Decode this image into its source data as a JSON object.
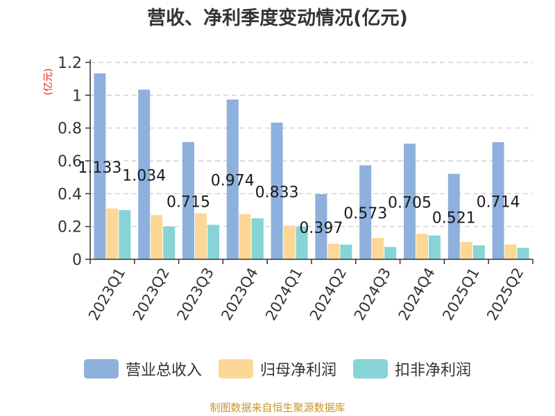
{
  "chart_data": {
    "type": "bar",
    "title": "营收、净利季度变动情况(亿元)",
    "ylabel": "(亿元)",
    "xlabel": "",
    "ylim": [
      0,
      1.2
    ],
    "yticks": [
      "0",
      "0.2",
      "0.4",
      "0.6",
      "0.8",
      "1",
      "1.2"
    ],
    "grid": true,
    "legend_position": "bottom",
    "categories": [
      "2023Q1",
      "2023Q2",
      "2023Q3",
      "2023Q4",
      "2024Q1",
      "2024Q2",
      "2024Q3",
      "2024Q4",
      "2025Q1",
      "2025Q2"
    ],
    "series": [
      {
        "name": "营业总收入",
        "color": "#8eb0dc",
        "values": [
          1.133,
          1.034,
          0.715,
          0.974,
          0.833,
          0.397,
          0.573,
          0.705,
          0.521,
          0.714
        ],
        "labels": [
          "1.133",
          "1.034",
          "0.715",
          "0.974",
          "0.833",
          "0.397",
          "0.573",
          "0.705",
          "0.521",
          "0.714"
        ]
      },
      {
        "name": "归母净利润",
        "color": "#fdd795",
        "values": [
          0.31,
          0.27,
          0.28,
          0.275,
          0.205,
          0.095,
          0.13,
          0.155,
          0.105,
          0.09
        ]
      },
      {
        "name": "扣非净利润",
        "color": "#86d4d6",
        "values": [
          0.3,
          0.2,
          0.21,
          0.25,
          0.2,
          0.09,
          0.075,
          0.145,
          0.085,
          0.07
        ]
      }
    ]
  },
  "source": "制图数据来自恒生聚源数据库"
}
